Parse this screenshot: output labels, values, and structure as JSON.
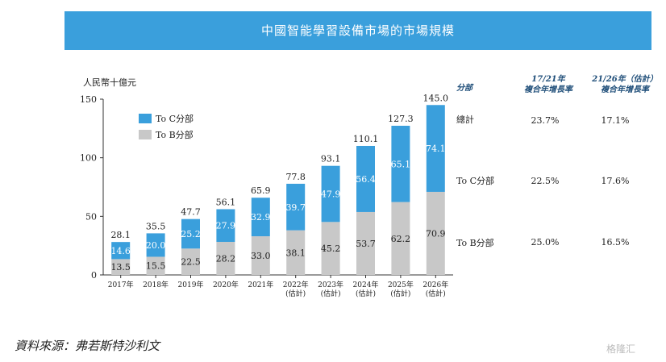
{
  "title": "中國智能學習設備市場的市場規模",
  "source": "資料來源：弗若斯特沙利文",
  "watermark": "格隆汇",
  "colors": {
    "banner": "#3a9fdc",
    "toc": "#3a9fdc",
    "tob": "#c8c8c8"
  },
  "chart_data": {
    "type": "bar",
    "stacked": true,
    "unit_label": "人民幣十億元",
    "ylim": [
      0,
      150
    ],
    "yticks": [
      0,
      50,
      100,
      150
    ],
    "categories": [
      "2017年",
      "2018年",
      "2019年",
      "2020年",
      "2021年",
      "2022年\n(估計)",
      "2023年\n(估計)",
      "2024年\n(估計)",
      "2025年\n(估計)",
      "2026年\n(估計)"
    ],
    "series": [
      {
        "name": "To B分部",
        "values": [
          13.5,
          15.5,
          22.5,
          28.2,
          33.0,
          38.1,
          45.2,
          53.7,
          62.2,
          70.9
        ]
      },
      {
        "name": "To C分部",
        "values": [
          14.6,
          20.0,
          25.2,
          27.9,
          32.9,
          39.7,
          47.9,
          56.4,
          65.1,
          74.1
        ]
      }
    ],
    "totals": [
      28.1,
      35.5,
      47.7,
      56.1,
      65.9,
      77.8,
      93.1,
      110.1,
      127.3,
      145.0
    ],
    "legend": [
      "To C分部",
      "To B分部"
    ]
  },
  "cagr_table": {
    "header_segment": "分部",
    "header_col1": [
      "17/21年",
      "複合年增長率"
    ],
    "header_col2": [
      "21/26年（估計）",
      "複合年增長率"
    ],
    "rows": [
      {
        "label": "總計",
        "v1": "23.7%",
        "v2": "17.1%"
      },
      {
        "label": "To C分部",
        "v1": "22.5%",
        "v2": "17.6%"
      },
      {
        "label": "To B分部",
        "v1": "25.0%",
        "v2": "16.5%"
      }
    ]
  }
}
